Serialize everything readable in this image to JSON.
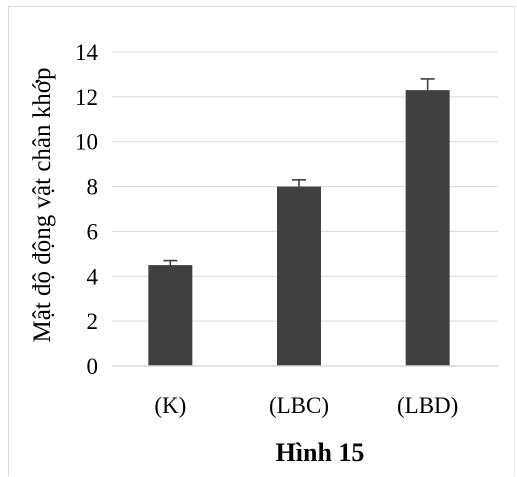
{
  "chart_data": {
    "type": "bar",
    "title": "Hình 15",
    "xlabel": "",
    "ylabel": "Mật độ động vật chân khớp",
    "categories": [
      "(K)",
      "(LBC)",
      "(LBD)"
    ],
    "values": [
      4.5,
      8.0,
      12.3
    ],
    "errors": [
      0.2,
      0.3,
      0.5
    ],
    "ylim": [
      0,
      14
    ],
    "yticks": [
      "0",
      "2",
      "4",
      "6",
      "8",
      "10",
      "12",
      "14"
    ],
    "grid": true,
    "bar_color": "#404040",
    "grid_color": "#d9d9d9"
  }
}
